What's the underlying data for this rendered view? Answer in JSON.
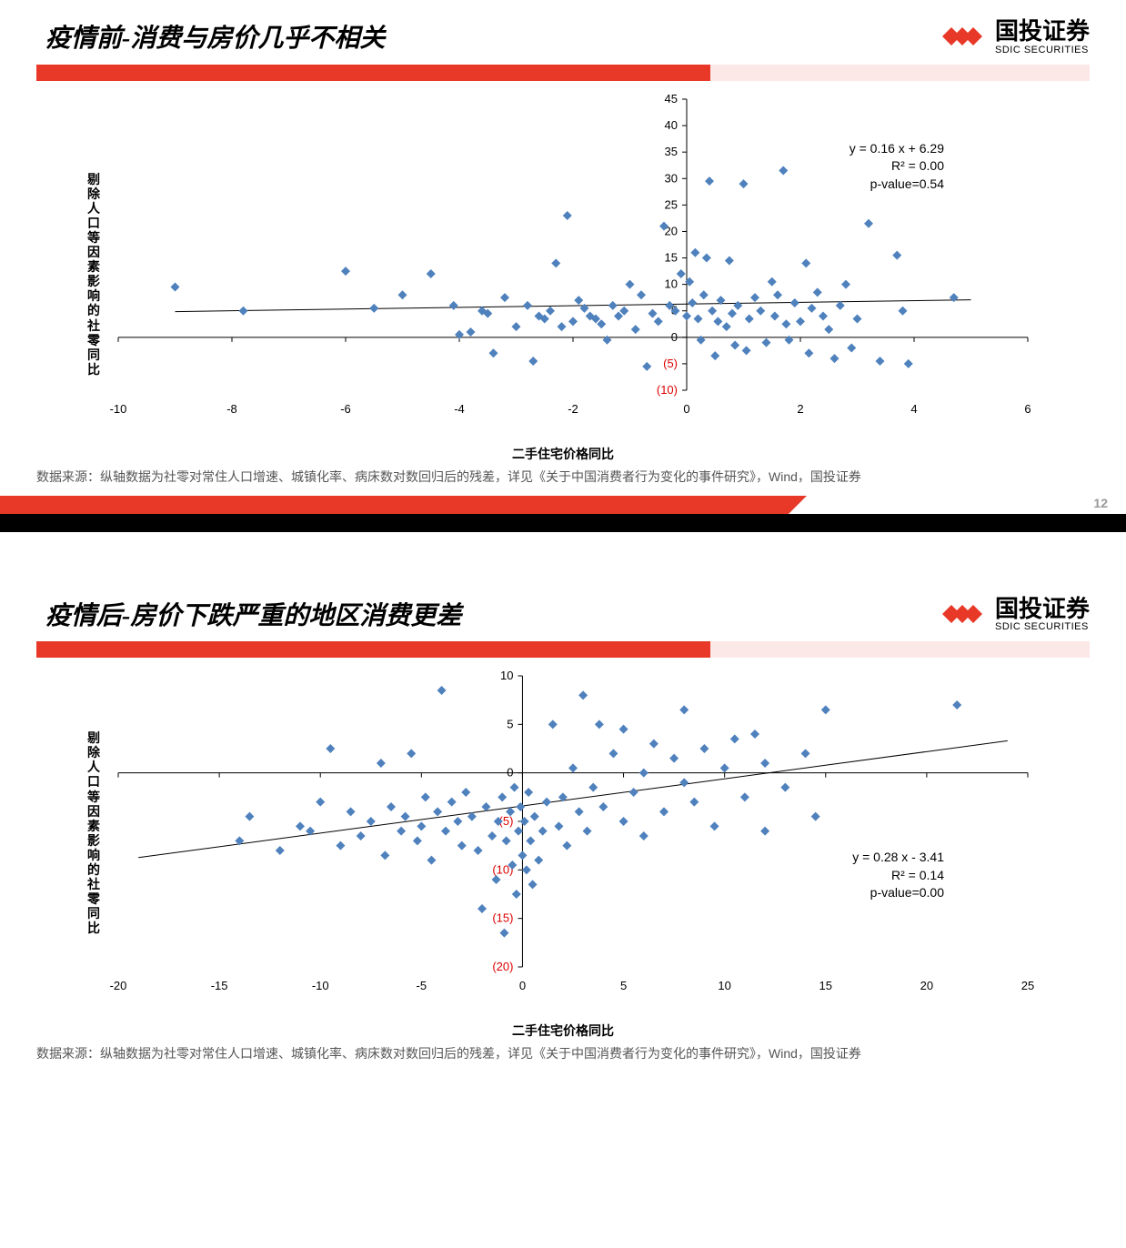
{
  "brand": {
    "cn": "国投证券",
    "en": "SDIC SECURITIES",
    "logo_color": "#e83828"
  },
  "slide1": {
    "title": "疫情前-消费与房价几乎不相关",
    "page_num": "12",
    "chart": {
      "type": "scatter",
      "y_label": "剔除人口等因素影响的社零同比",
      "x_label": "二手住宅价格同比",
      "annotation": {
        "eq": "y = 0.16 x + 6.29",
        "r2": "R² = 0.00",
        "pval": "p-value=0.54"
      },
      "xlim": [
        -10,
        6
      ],
      "ylim": [
        -10,
        45
      ],
      "xticks": [
        -10,
        -8,
        -6,
        -4,
        -2,
        0,
        2,
        4,
        6
      ],
      "yticks": [
        -10,
        -5,
        0,
        5,
        10,
        15,
        20,
        25,
        30,
        35,
        40,
        45
      ],
      "marker_color": "#4f81bd",
      "marker_size": 5,
      "line_color": "#000000",
      "trend": {
        "slope": 0.16,
        "intercept": 6.29
      },
      "background": "#ffffff",
      "points": [
        [
          -9.0,
          9.5
        ],
        [
          -7.8,
          5.0
        ],
        [
          -6.0,
          12.5
        ],
        [
          -5.5,
          5.5
        ],
        [
          -5.0,
          8.0
        ],
        [
          -4.5,
          12.0
        ],
        [
          -4.1,
          6.0
        ],
        [
          -4.0,
          0.5
        ],
        [
          -3.8,
          1.0
        ],
        [
          -3.6,
          5.0
        ],
        [
          -3.5,
          4.5
        ],
        [
          -3.4,
          -3.0
        ],
        [
          -3.2,
          7.5
        ],
        [
          -3.0,
          2.0
        ],
        [
          -2.8,
          6.0
        ],
        [
          -2.7,
          -4.5
        ],
        [
          -2.6,
          4.0
        ],
        [
          -2.5,
          3.5
        ],
        [
          -2.4,
          5.0
        ],
        [
          -2.3,
          14.0
        ],
        [
          -2.2,
          2.0
        ],
        [
          -2.1,
          23.0
        ],
        [
          -2.0,
          3.0
        ],
        [
          -1.9,
          7.0
        ],
        [
          -1.8,
          5.5
        ],
        [
          -1.7,
          4.0
        ],
        [
          -1.6,
          3.5
        ],
        [
          -1.5,
          2.5
        ],
        [
          -1.4,
          -0.5
        ],
        [
          -1.3,
          6.0
        ],
        [
          -1.2,
          4.0
        ],
        [
          -1.1,
          5.0
        ],
        [
          -1.0,
          10.0
        ],
        [
          -0.9,
          1.5
        ],
        [
          -0.8,
          8.0
        ],
        [
          -0.7,
          -5.5
        ],
        [
          -0.6,
          4.5
        ],
        [
          -0.5,
          3.0
        ],
        [
          -0.4,
          21.0
        ],
        [
          -0.3,
          6.0
        ],
        [
          -0.2,
          5.0
        ],
        [
          -0.1,
          12.0
        ],
        [
          0.0,
          4.0
        ],
        [
          0.05,
          10.5
        ],
        [
          0.1,
          6.5
        ],
        [
          0.15,
          16.0
        ],
        [
          0.2,
          3.5
        ],
        [
          0.25,
          -0.5
        ],
        [
          0.3,
          8.0
        ],
        [
          0.35,
          15.0
        ],
        [
          0.4,
          29.5
        ],
        [
          0.45,
          5.0
        ],
        [
          0.5,
          -3.5
        ],
        [
          0.55,
          3.0
        ],
        [
          0.6,
          7.0
        ],
        [
          0.7,
          2.0
        ],
        [
          0.75,
          14.5
        ],
        [
          0.8,
          4.5
        ],
        [
          0.85,
          -1.5
        ],
        [
          0.9,
          6.0
        ],
        [
          1.0,
          29.0
        ],
        [
          1.05,
          -2.5
        ],
        [
          1.1,
          3.5
        ],
        [
          1.2,
          7.5
        ],
        [
          1.3,
          5.0
        ],
        [
          1.4,
          -1.0
        ],
        [
          1.5,
          10.5
        ],
        [
          1.55,
          4.0
        ],
        [
          1.6,
          8.0
        ],
        [
          1.7,
          31.5
        ],
        [
          1.75,
          2.5
        ],
        [
          1.8,
          -0.5
        ],
        [
          1.9,
          6.5
        ],
        [
          2.0,
          3.0
        ],
        [
          2.1,
          14.0
        ],
        [
          2.15,
          -3.0
        ],
        [
          2.2,
          5.5
        ],
        [
          2.3,
          8.5
        ],
        [
          2.4,
          4.0
        ],
        [
          2.5,
          1.5
        ],
        [
          2.6,
          -4.0
        ],
        [
          2.7,
          6.0
        ],
        [
          2.8,
          10.0
        ],
        [
          2.9,
          -2.0
        ],
        [
          3.0,
          3.5
        ],
        [
          3.2,
          21.5
        ],
        [
          3.4,
          -4.5
        ],
        [
          3.7,
          15.5
        ],
        [
          3.8,
          5.0
        ],
        [
          3.9,
          -5.0
        ],
        [
          4.7,
          7.5
        ]
      ]
    },
    "source": "数据来源：纵轴数据为社零对常住人口增速、城镇化率、病床数对数回归后的残差，详见《关于中国消费者行为变化的事件研究》，Wind，国投证券"
  },
  "slide2": {
    "title": "疫情后-房价下跌严重的地区消费更差",
    "chart": {
      "type": "scatter",
      "y_label": "剔除人口等因素影响的社零同比",
      "x_label": "二手住宅价格同比",
      "annotation": {
        "eq": "y = 0.28 x - 3.41",
        "r2": "R² = 0.14",
        "pval": "p-value=0.00"
      },
      "xlim": [
        -20,
        25
      ],
      "ylim": [
        -20,
        10
      ],
      "xticks": [
        -20,
        -15,
        -10,
        -5,
        0,
        5,
        10,
        15,
        20,
        25
      ],
      "yticks": [
        -20,
        -15,
        -10,
        -5,
        0,
        5,
        10
      ],
      "marker_color": "#4f81bd",
      "marker_size": 5,
      "line_color": "#000000",
      "trend": {
        "slope": 0.28,
        "intercept": -3.41
      },
      "background": "#ffffff",
      "points": [
        [
          -14.0,
          -7.0
        ],
        [
          -13.5,
          -4.5
        ],
        [
          -12.0,
          -8.0
        ],
        [
          -11.0,
          -5.5
        ],
        [
          -10.5,
          -6.0
        ],
        [
          -10.0,
          -3.0
        ],
        [
          -9.5,
          2.5
        ],
        [
          -9.0,
          -7.5
        ],
        [
          -8.5,
          -4.0
        ],
        [
          -8.0,
          -6.5
        ],
        [
          -7.5,
          -5.0
        ],
        [
          -7.0,
          1.0
        ],
        [
          -6.8,
          -8.5
        ],
        [
          -6.5,
          -3.5
        ],
        [
          -6.0,
          -6.0
        ],
        [
          -5.8,
          -4.5
        ],
        [
          -5.5,
          2.0
        ],
        [
          -5.2,
          -7.0
        ],
        [
          -5.0,
          -5.5
        ],
        [
          -4.8,
          -2.5
        ],
        [
          -4.5,
          -9.0
        ],
        [
          -4.2,
          -4.0
        ],
        [
          -4.0,
          8.5
        ],
        [
          -3.8,
          -6.0
        ],
        [
          -3.5,
          -3.0
        ],
        [
          -3.2,
          -5.0
        ],
        [
          -3.0,
          -7.5
        ],
        [
          -2.8,
          -2.0
        ],
        [
          -2.5,
          -4.5
        ],
        [
          -2.2,
          -8.0
        ],
        [
          -2.0,
          -14.0
        ],
        [
          -1.8,
          -3.5
        ],
        [
          -1.5,
          -6.5
        ],
        [
          -1.3,
          -11.0
        ],
        [
          -1.2,
          -5.0
        ],
        [
          -1.0,
          -2.5
        ],
        [
          -0.9,
          -16.5
        ],
        [
          -0.8,
          -7.0
        ],
        [
          -0.6,
          -4.0
        ],
        [
          -0.5,
          -9.5
        ],
        [
          -0.4,
          -1.5
        ],
        [
          -0.3,
          -12.5
        ],
        [
          -0.2,
          -6.0
        ],
        [
          -0.1,
          -3.5
        ],
        [
          0.0,
          -8.5
        ],
        [
          0.1,
          -5.0
        ],
        [
          0.2,
          -10.0
        ],
        [
          0.3,
          -2.0
        ],
        [
          0.4,
          -7.0
        ],
        [
          0.5,
          -11.5
        ],
        [
          0.6,
          -4.5
        ],
        [
          0.8,
          -9.0
        ],
        [
          1.0,
          -6.0
        ],
        [
          1.2,
          -3.0
        ],
        [
          1.5,
          5.0
        ],
        [
          1.8,
          -5.5
        ],
        [
          2.0,
          -2.5
        ],
        [
          2.2,
          -7.5
        ],
        [
          2.5,
          0.5
        ],
        [
          2.8,
          -4.0
        ],
        [
          3.0,
          8.0
        ],
        [
          3.2,
          -6.0
        ],
        [
          3.5,
          -1.5
        ],
        [
          3.8,
          5.0
        ],
        [
          4.0,
          -3.5
        ],
        [
          4.5,
          2.0
        ],
        [
          5.0,
          -5.0
        ],
        [
          5.0,
          4.5
        ],
        [
          5.5,
          -2.0
        ],
        [
          6.0,
          0.0
        ],
        [
          6.0,
          -6.5
        ],
        [
          6.5,
          3.0
        ],
        [
          7.0,
          -4.0
        ],
        [
          7.5,
          1.5
        ],
        [
          8.0,
          -1.0
        ],
        [
          8.0,
          6.5
        ],
        [
          8.5,
          -3.0
        ],
        [
          9.0,
          2.5
        ],
        [
          9.5,
          -5.5
        ],
        [
          10.0,
          0.5
        ],
        [
          10.5,
          3.5
        ],
        [
          11.0,
          -2.5
        ],
        [
          11.5,
          4.0
        ],
        [
          12.0,
          1.0
        ],
        [
          12.0,
          -6.0
        ],
        [
          13.0,
          -1.5
        ],
        [
          14.0,
          2.0
        ],
        [
          14.5,
          -4.5
        ],
        [
          15.0,
          6.5
        ],
        [
          21.5,
          7.0
        ]
      ]
    },
    "source": "数据来源：纵轴数据为社零对常住人口增速、城镇化率、病床数对数回归后的残差，详见《关于中国消费者行为变化的事件研究》，Wind，国投证券"
  }
}
